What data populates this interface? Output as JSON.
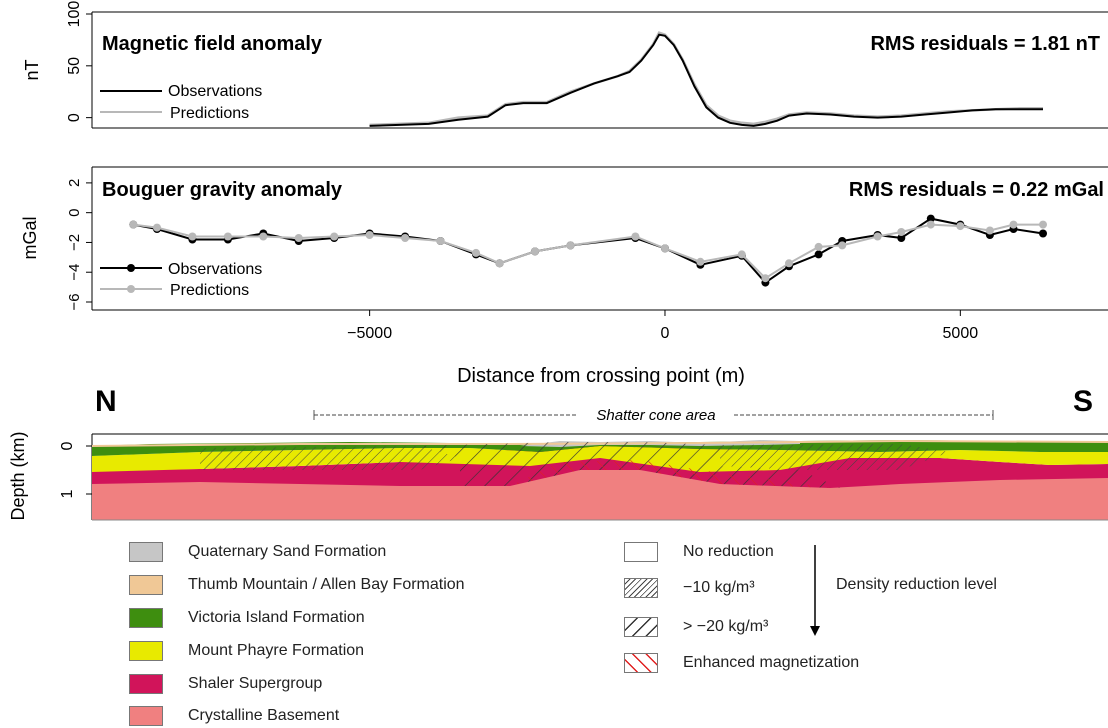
{
  "chart_data": [
    {
      "type": "line",
      "title": "Magnetic field anomaly",
      "annotation": "RMS residuals = 1.81 nT",
      "ylabel": "nT",
      "ylim": [
        -10,
        100
      ],
      "yticks": [
        "0",
        "50",
        "100"
      ],
      "xlim": [
        -9700,
        7500
      ],
      "grid": false,
      "legend": "bottom-left",
      "series": [
        {
          "name": "Observations",
          "color": "#000000",
          "x": [
            -5000,
            -4000,
            -3500,
            -3000,
            -2700,
            -2400,
            -2000,
            -1600,
            -1200,
            -800,
            -600,
            -400,
            -200,
            -100,
            0,
            150,
            300,
            500,
            700,
            900,
            1100,
            1300,
            1500,
            1700,
            1900,
            2100,
            2400,
            2800,
            3200,
            3600,
            4000,
            4400,
            4800,
            5200,
            5600,
            6000,
            6400
          ],
          "y": [
            -8,
            -6,
            -2,
            1,
            12,
            14,
            14,
            24,
            33,
            40,
            44,
            55,
            70,
            80,
            79,
            70,
            55,
            30,
            10,
            0,
            -5,
            -7,
            -8,
            -6,
            -3,
            2,
            4,
            3,
            1,
            0,
            1,
            3,
            5,
            7,
            8,
            8,
            8
          ]
        },
        {
          "name": "Predictions",
          "color": "#b8b8b8",
          "x": [
            -5000,
            -4000,
            -3500,
            -3000,
            -2700,
            -2400,
            -2000,
            -1600,
            -1200,
            -800,
            -600,
            -400,
            -200,
            -100,
            0,
            150,
            300,
            500,
            700,
            900,
            1100,
            1300,
            1500,
            1700,
            1900,
            2100,
            2400,
            2800,
            3200,
            3600,
            4000,
            4400,
            4800,
            5200,
            5600,
            6000,
            6400
          ],
          "y": [
            -7,
            -5,
            0,
            2,
            13,
            15,
            15,
            25,
            33,
            40,
            45,
            56,
            71,
            82,
            80,
            71,
            56,
            32,
            12,
            2,
            -3,
            -5,
            -6,
            -4,
            -1,
            3,
            5,
            4,
            2,
            1,
            2,
            4,
            6,
            7,
            8,
            9,
            9
          ]
        }
      ]
    },
    {
      "type": "line",
      "title": "Bouguer gravity anomaly",
      "annotation": "RMS residuals = 0.22 mGal",
      "ylabel": "mGal",
      "ylim": [
        -6,
        3
      ],
      "yticks": [
        "2",
        "0",
        "−2",
        "−4",
        "−6"
      ],
      "xlim": [
        -9700,
        7500
      ],
      "xticks": [
        "−5000",
        "0",
        "5000"
      ],
      "xlabel": "Distance from crossing point (m)",
      "grid": false,
      "legend": "bottom-left",
      "series": [
        {
          "name": "Observations",
          "color": "#000000",
          "x": [
            -9000,
            -8600,
            -8000,
            -7400,
            -6800,
            -6200,
            -5600,
            -5000,
            -4400,
            -3800,
            -3200,
            -2800,
            -2200,
            -1600,
            -500,
            0,
            600,
            1300,
            1700,
            2100,
            2600,
            3000,
            3600,
            4000,
            4500,
            5000,
            5500,
            5900,
            6400
          ],
          "y": [
            -0.8,
            -1.1,
            -1.8,
            -1.8,
            -1.4,
            -1.9,
            -1.7,
            -1.4,
            -1.6,
            -1.9,
            -2.8,
            -3.4,
            -2.6,
            -2.2,
            -1.7,
            -2.4,
            -3.5,
            -2.9,
            -4.7,
            -3.6,
            -2.8,
            -1.9,
            -1.5,
            -1.7,
            -0.4,
            -0.8,
            -1.5,
            -1.1,
            -1.4
          ]
        },
        {
          "name": "Predictions",
          "color": "#b8b8b8",
          "x": [
            -9000,
            -8600,
            -8000,
            -7400,
            -6800,
            -6200,
            -5600,
            -5000,
            -4400,
            -3800,
            -3200,
            -2800,
            -2200,
            -1600,
            -500,
            0,
            600,
            1300,
            1700,
            2100,
            2600,
            3000,
            3600,
            4000,
            4500,
            5000,
            5500,
            5900,
            6400
          ],
          "y": [
            -0.8,
            -1.0,
            -1.6,
            -1.6,
            -1.6,
            -1.7,
            -1.6,
            -1.5,
            -1.7,
            -1.9,
            -2.7,
            -3.4,
            -2.6,
            -2.2,
            -1.6,
            -2.4,
            -3.3,
            -2.8,
            -4.4,
            -3.4,
            -2.3,
            -2.2,
            -1.6,
            -1.3,
            -0.8,
            -0.9,
            -1.2,
            -0.8,
            -0.8
          ]
        }
      ]
    }
  ],
  "section": {
    "north_label": "N",
    "south_label": "S",
    "ylabel": "Depth (km)",
    "yticks": [
      "0",
      "1"
    ],
    "shatter_label": "Shatter cone area",
    "layers": [
      {
        "name": "Quaternary Sand Formation",
        "color": "#c6c6c6"
      },
      {
        "name": "Thumb Mountain / Allen Bay Formation",
        "color": "#f0c896"
      },
      {
        "name": "Victoria Island Formation",
        "color": "#3e8e0f"
      },
      {
        "name": "Mount Phayre Formation",
        "color": "#e8ea00"
      },
      {
        "name": "Shaler Supergroup",
        "color": "#d1145a"
      },
      {
        "name": "Crystalline Basement",
        "color": "#f08080"
      }
    ]
  },
  "density_legend": {
    "title": "Density reduction level",
    "items": [
      {
        "label": "No reduction",
        "pattern": "none"
      },
      {
        "label": "−10 kg/m³",
        "pattern": "fine-hatch"
      },
      {
        "label": "> −20 kg/m³",
        "pattern": "coarse-hatch"
      },
      {
        "label": "Enhanced magnetization",
        "pattern": "red-hatch"
      }
    ]
  }
}
